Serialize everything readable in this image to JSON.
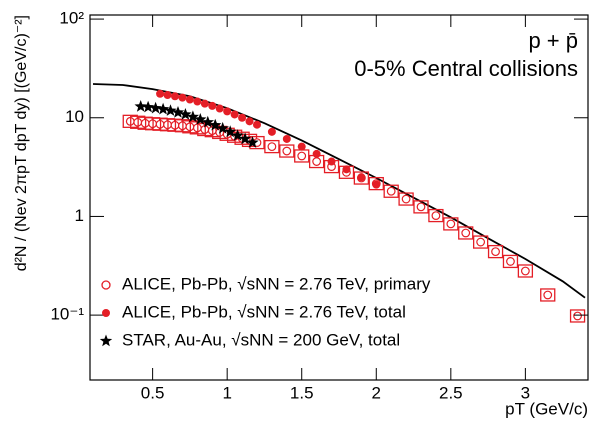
{
  "chart_data": {
    "type": "scatter",
    "title": "p + p̄",
    "subtitle": "0-5% Central collisions",
    "x_label": "pT (GeV/c)",
    "y_label": "d²N / (Nev 2πpT dpT dy) [(GeV/c)⁻²]",
    "log_y": true,
    "xlim": [
      0.08,
      3.42
    ],
    "ylim": [
      0.022,
      110
    ],
    "xticks": [
      0.5,
      1,
      1.5,
      2,
      2.5,
      3
    ],
    "yticks": [
      {
        "value": 0.1,
        "label": "10⁻¹"
      },
      1,
      10,
      {
        "value": 100,
        "label": "10²"
      }
    ],
    "series": [
      {
        "name": "ALICE, Pb-Pb, √sNN = 2.76 TeV, primary",
        "color": "#e41e26",
        "marker": "open-circle",
        "x": [
          0.35,
          0.4,
          0.45,
          0.5,
          0.55,
          0.6,
          0.65,
          0.7,
          0.75,
          0.8,
          0.85,
          0.9,
          0.95,
          1.0,
          1.05,
          1.1,
          1.15,
          1.2,
          1.3,
          1.4,
          1.5,
          1.6,
          1.7,
          1.8,
          1.9,
          2.0,
          2.1,
          2.2,
          2.3,
          2.4,
          2.5,
          2.6,
          2.7,
          2.8,
          2.9,
          3.0,
          3.15,
          3.35
        ],
        "values": [
          9.2,
          9.0,
          8.8,
          8.7,
          8.6,
          8.5,
          8.4,
          8.3,
          8.1,
          7.9,
          7.6,
          7.4,
          7.1,
          6.8,
          6.5,
          6.2,
          5.9,
          5.6,
          5.1,
          4.6,
          4.1,
          3.6,
          3.2,
          2.8,
          2.45,
          2.15,
          1.8,
          1.5,
          1.25,
          1.02,
          0.84,
          0.68,
          0.55,
          0.44,
          0.35,
          0.28,
          0.16,
          0.098
        ]
      },
      {
        "name": "ALICE, Pb-Pb, √sNN = 2.76 TeV, total",
        "color": "#e41e26",
        "marker": "filled-circle",
        "x": [
          0.55,
          0.6,
          0.65,
          0.7,
          0.75,
          0.8,
          0.85,
          0.9,
          0.95,
          1.0,
          1.05,
          1.1,
          1.15,
          1.2,
          1.3,
          1.4,
          1.5,
          1.6,
          1.7,
          1.8,
          1.9,
          2.0
        ],
        "values": [
          17.5,
          17,
          16.5,
          16,
          15.3,
          14.6,
          13.9,
          13.2,
          12.4,
          11.6,
          10.8,
          10,
          9.2,
          8.5,
          7.2,
          6.1,
          5.1,
          4.3,
          3.6,
          3.0,
          2.5,
          2.1
        ]
      },
      {
        "name": "STAR, Au-Au, √sNN = 200 GeV, total",
        "color": "#000000",
        "marker": "star",
        "x": [
          0.42,
          0.47,
          0.52,
          0.57,
          0.62,
          0.67,
          0.72,
          0.77,
          0.82,
          0.87,
          0.92,
          0.97,
          1.02,
          1.07,
          1.12,
          1.17
        ],
        "values": [
          13,
          12.8,
          12.5,
          12.2,
          11.8,
          11.3,
          10.8,
          10.2,
          9.6,
          9.0,
          8.4,
          7.8,
          7.2,
          6.6,
          6.1,
          5.6
        ]
      }
    ],
    "fit": {
      "color": "#000000",
      "x": [
        0.1,
        0.3,
        0.5,
        0.75,
        1.0,
        1.25,
        1.5,
        1.75,
        2.0,
        2.25,
        2.5,
        2.75,
        3.0,
        3.25,
        3.4
      ],
      "values": [
        22,
        21.5,
        19.5,
        16.5,
        12.5,
        8.8,
        5.9,
        3.8,
        2.45,
        1.55,
        0.98,
        0.6,
        0.37,
        0.22,
        0.15
      ]
    }
  }
}
